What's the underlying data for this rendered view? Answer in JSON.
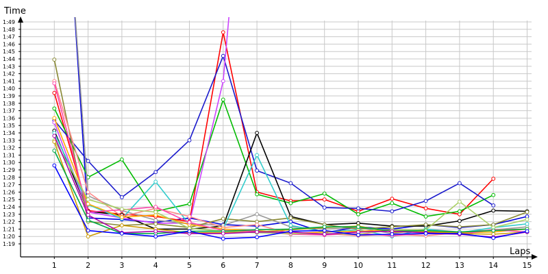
{
  "chart_data": {
    "type": "line",
    "ylabel": "Time",
    "xlabel": "Laps",
    "x": [
      1,
      2,
      3,
      4,
      5,
      6,
      7,
      8,
      9,
      10,
      11,
      12,
      13,
      14,
      15
    ],
    "x_ticks": [
      "1",
      "2",
      "3",
      "4",
      "5",
      "6",
      "7",
      "8",
      "9",
      "10",
      "11",
      "12",
      "13",
      "14",
      "15"
    ],
    "y_ticks": [
      "1:19",
      "1:20",
      "1:21",
      "1:22",
      "1:23",
      "1:24",
      "1:25",
      "1:26",
      "1:27",
      "1:28",
      "1:29",
      "1:30",
      "1:31",
      "1:32",
      "1:33",
      "1:34",
      "1:35",
      "1:36",
      "1:37",
      "1:38",
      "1:39",
      "1:40",
      "1:41",
      "1:42",
      "1:43",
      "1:44",
      "1:45",
      "1:46",
      "1:47",
      "1:48",
      "1:49"
    ],
    "y_unit": "seconds",
    "ylim": [
      78,
      152
    ],
    "xlim": [
      0,
      15
    ],
    "grid": true,
    "legend": "none",
    "series": [
      {
        "color": "#0000dd",
        "values": [
          152,
          82.5,
          82.3,
          81.9,
          82.5,
          81.6,
          81.4,
          82.0,
          80.5,
          81.3,
          81.0,
          81.6,
          81.2,
          81.6,
          82.7
        ]
      },
      {
        "color": "#ff0000",
        "values": [
          99.4,
          83.5,
          83.0,
          82.7,
          82.0,
          107.6,
          86.0,
          84.8,
          85.0,
          83.4,
          85.1,
          83.8,
          83.0,
          87.8,
          null
        ]
      },
      {
        "color": "#00bb00",
        "values": [
          97.3,
          88.0,
          90.4,
          83.4,
          84.4,
          98.5,
          85.7,
          84.5,
          85.8,
          83.0,
          84.5,
          82.7,
          83.4,
          85.6,
          null
        ]
      },
      {
        "color": "#1a1acc",
        "values": [
          95.7,
          90.2,
          85.3,
          88.7,
          93.0,
          104.4,
          88.9,
          87.2,
          83.9,
          83.8,
          83.4,
          84.8,
          87.2,
          84.2,
          null
        ]
      },
      {
        "color": "#000000",
        "values": [
          94.3,
          83.4,
          82.9,
          81.0,
          81.0,
          81.4,
          94.0,
          82.7,
          81.6,
          81.8,
          81.4,
          81.4,
          82.1,
          83.5,
          83.4
        ]
      },
      {
        "color": "#cc44ff",
        "values": [
          95.4,
          83.3,
          82.5,
          81.8,
          81.8,
          101.0,
          152,
          null,
          null,
          null,
          null,
          null,
          null,
          null,
          null
        ]
      },
      {
        "color": "#999999",
        "values": [
          149.4,
          85.5,
          83.5,
          82.2,
          81.7,
          81.5,
          83.0,
          81.3,
          81.0,
          81.2,
          80.4,
          81.0,
          80.6,
          80.9,
          81.3
        ]
      },
      {
        "color": "#888833",
        "values": [
          103.9,
          82.0,
          81.5,
          81.7,
          81.2,
          82.4,
          82.0,
          82.5,
          81.6,
          81.0,
          81.3,
          81.6,
          81.3,
          81.6,
          83.3
        ]
      },
      {
        "color": "#33cccc",
        "values": [
          94.0,
          84.3,
          82.4,
          87.4,
          81.6,
          81.0,
          91.0,
          81.5,
          80.6,
          80.9,
          80.0,
          81.0,
          80.5,
          81.2,
          81.7
        ]
      },
      {
        "color": "#ff8888",
        "values": [
          101.0,
          86.0,
          82.7,
          83.8,
          82.7,
          81.2,
          81.6,
          80.4,
          80.4,
          80.1,
          80.3,
          80.1,
          80.5,
          80.9,
          81.0
        ]
      },
      {
        "color": "#ffaa00",
        "values": [
          96.0,
          84.4,
          82.6,
          82.9,
          81.6,
          81.0,
          80.8,
          80.4,
          80.6,
          80.7,
          80.9,
          80.7,
          80.5,
          80.6,
          81.0
        ]
      },
      {
        "color": "#ff44aa",
        "values": [
          100.7,
          83.3,
          83.6,
          84.0,
          81.9,
          80.8,
          80.7,
          80.3,
          80.2,
          80.4,
          80.1,
          80.4,
          80.3,
          80.9,
          80.6
        ]
      },
      {
        "color": "#aad066",
        "values": [
          93.0,
          85.0,
          83.7,
          83.3,
          81.1,
          80.7,
          80.5,
          80.4,
          80.4,
          80.3,
          80.9,
          80.9,
          84.7,
          81.2,
          82.3
        ]
      },
      {
        "color": "#cc9900",
        "values": [
          92.8,
          80.0,
          81.5,
          81.0,
          80.5,
          80.5,
          80.6,
          80.9,
          81.2,
          81.4,
          80.6,
          80.6,
          80.4,
          80.3,
          80.6
        ]
      },
      {
        "color": "#00aa44",
        "values": [
          91.6,
          82.2,
          80.4,
          80.4,
          80.7,
          80.7,
          80.9,
          81.0,
          81.3,
          81.3,
          80.7,
          80.8,
          80.6,
          80.8,
          81.0
        ]
      },
      {
        "color": "#aa00aa",
        "values": [
          93.6,
          82.9,
          80.5,
          80.7,
          80.4,
          80.4,
          80.6,
          80.6,
          80.3,
          80.6,
          80.7,
          80.5,
          80.3,
          79.9,
          80.6
        ]
      },
      {
        "color": "#0000ff",
        "values": [
          89.6,
          80.8,
          80.4,
          80.0,
          80.7,
          79.7,
          79.9,
          80.7,
          80.8,
          80.2,
          80.3,
          80.4,
          80.4,
          79.8,
          80.7
        ]
      }
    ]
  }
}
